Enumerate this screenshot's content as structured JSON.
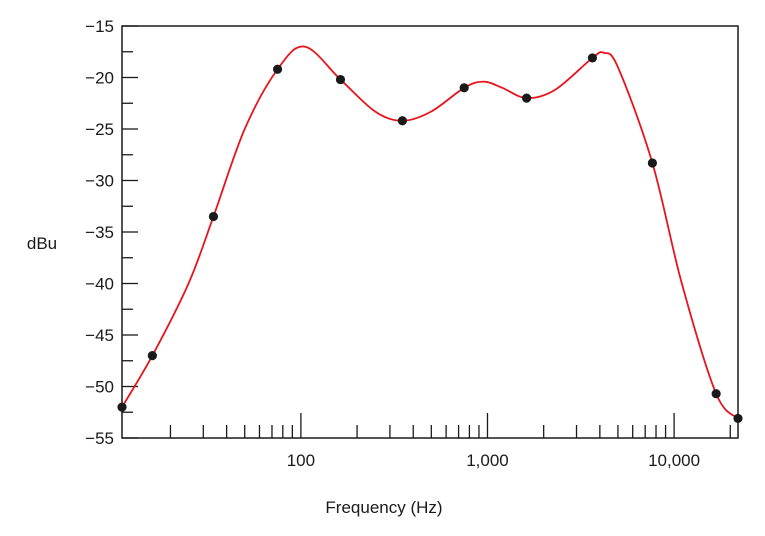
{
  "chart_data": {
    "type": "line",
    "title": "",
    "xlabel": "Frequency (Hz)",
    "ylabel": "dBu",
    "x_scale": "log",
    "xlim": [
      11,
      22000
    ],
    "ylim": [
      -55,
      -15
    ],
    "y_ticks": [
      -15,
      -20,
      -25,
      -30,
      -35,
      -40,
      -45,
      -50,
      -55
    ],
    "y_tick_labels": [
      "−15",
      "−20",
      "−25",
      "−30",
      "−35",
      "−40",
      "−45",
      "−50",
      "−55"
    ],
    "y_minor_ticks": [
      -17.5,
      -22.5,
      -27.5,
      -32.5,
      -37.5,
      -42.5,
      -47.5,
      -52.5
    ],
    "x_ticks": [
      100,
      1000,
      10000
    ],
    "x_tick_labels": [
      "100",
      "1,000",
      "10,000"
    ],
    "x_minor_ticks": [
      20,
      30,
      40,
      50,
      60,
      70,
      80,
      90,
      200,
      300,
      400,
      500,
      600,
      700,
      800,
      900,
      2000,
      3000,
      4000,
      5000,
      6000,
      7000,
      8000,
      9000,
      20000
    ],
    "grid": false,
    "line_color": "#e8141c",
    "marker_color": "#1a1a1a",
    "series": [
      {
        "x": [
          11,
          16,
          34,
          75,
          163,
          350,
          750,
          1620,
          3650,
          7650,
          16800,
          22000
        ],
        "y": [
          -52,
          -47,
          -33.5,
          -19.2,
          -20.2,
          -24.2,
          -21,
          -22,
          -18.1,
          -28.3,
          -50.7,
          -53.1
        ]
      }
    ],
    "curve": {
      "x": [
        11,
        16,
        25,
        34,
        50,
        75,
        105,
        163,
        250,
        350,
        500,
        750,
        950,
        1200,
        1620,
        2300,
        3650,
        4200,
        5000,
        7650,
        11000,
        16800,
        22000
      ],
      "y": [
        -52,
        -47,
        -40,
        -33.5,
        -25,
        -19.2,
        -17,
        -20.2,
        -23.3,
        -24.2,
        -23.3,
        -21,
        -20.4,
        -21,
        -22,
        -21.2,
        -18.1,
        -17.6,
        -19,
        -28.3,
        -40,
        -50.7,
        -53.1
      ]
    }
  }
}
